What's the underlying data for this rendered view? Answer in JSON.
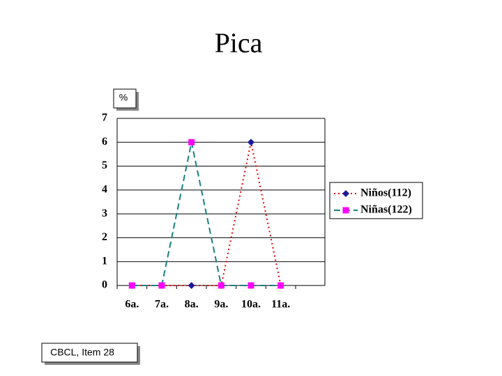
{
  "chart_data": {
    "type": "line",
    "title": "Pica",
    "y_label": "%",
    "footnote": "CBCL, Item 28",
    "categories": [
      "6a.",
      "7a.",
      "8a.",
      "9a.",
      "10a.",
      "11a."
    ],
    "series": [
      {
        "name": "Niños(112)",
        "color": "#e00000",
        "marker_color": "#1a1a9a",
        "marker": "diamond",
        "dash": "dotted",
        "values": [
          0,
          0,
          0,
          0,
          6,
          0
        ]
      },
      {
        "name": "Niñas(122)",
        "color": "#1a8080",
        "marker_color": "#ff00ff",
        "marker": "square",
        "dash": "dashed",
        "values": [
          0,
          0,
          6,
          0,
          0,
          0
        ]
      }
    ],
    "ylim": [
      0,
      7
    ],
    "yticks": [
      0,
      1,
      2,
      3,
      4,
      5,
      6,
      7
    ],
    "grid": true,
    "legend": "right"
  }
}
